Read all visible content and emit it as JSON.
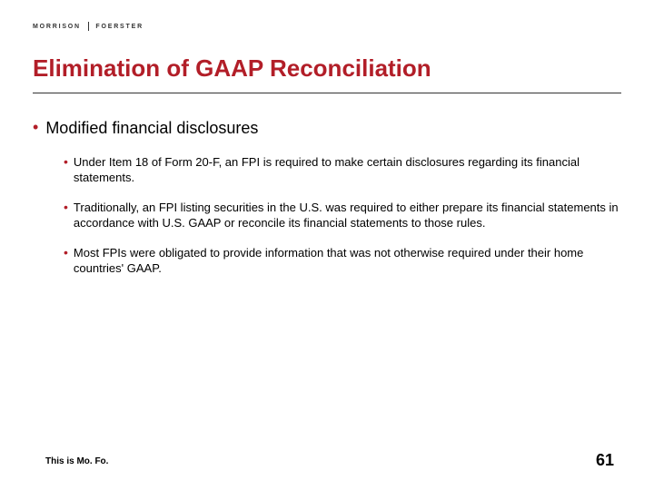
{
  "logo": {
    "left": "MORRISON",
    "right": "FOERSTER"
  },
  "title": "Elimination of GAAP Reconciliation",
  "colors": {
    "accent": "#b21e28",
    "text": "#000000",
    "rule": "#333333",
    "background": "#ffffff"
  },
  "typography": {
    "title_fontsize": 26,
    "l1_fontsize": 18,
    "l2_fontsize": 13,
    "footer_fontsize": 10,
    "page_number_fontsize": 18,
    "font_family": "Arial"
  },
  "bullets": {
    "l1": "Modified financial disclosures",
    "l2": [
      "Under Item 18 of Form 20-F, an FPI is required to make certain disclosures regarding its financial statements.",
      "Traditionally, an FPI listing securities in the U.S. was required to either prepare its financial statements in accordance with U.S. GAAP or reconcile its financial statements to those rules.",
      "Most FPIs were obligated to provide information that was not otherwise required under their home countries' GAAP."
    ]
  },
  "footer": {
    "left": "This is Mo. Fo.",
    "page": "61"
  }
}
